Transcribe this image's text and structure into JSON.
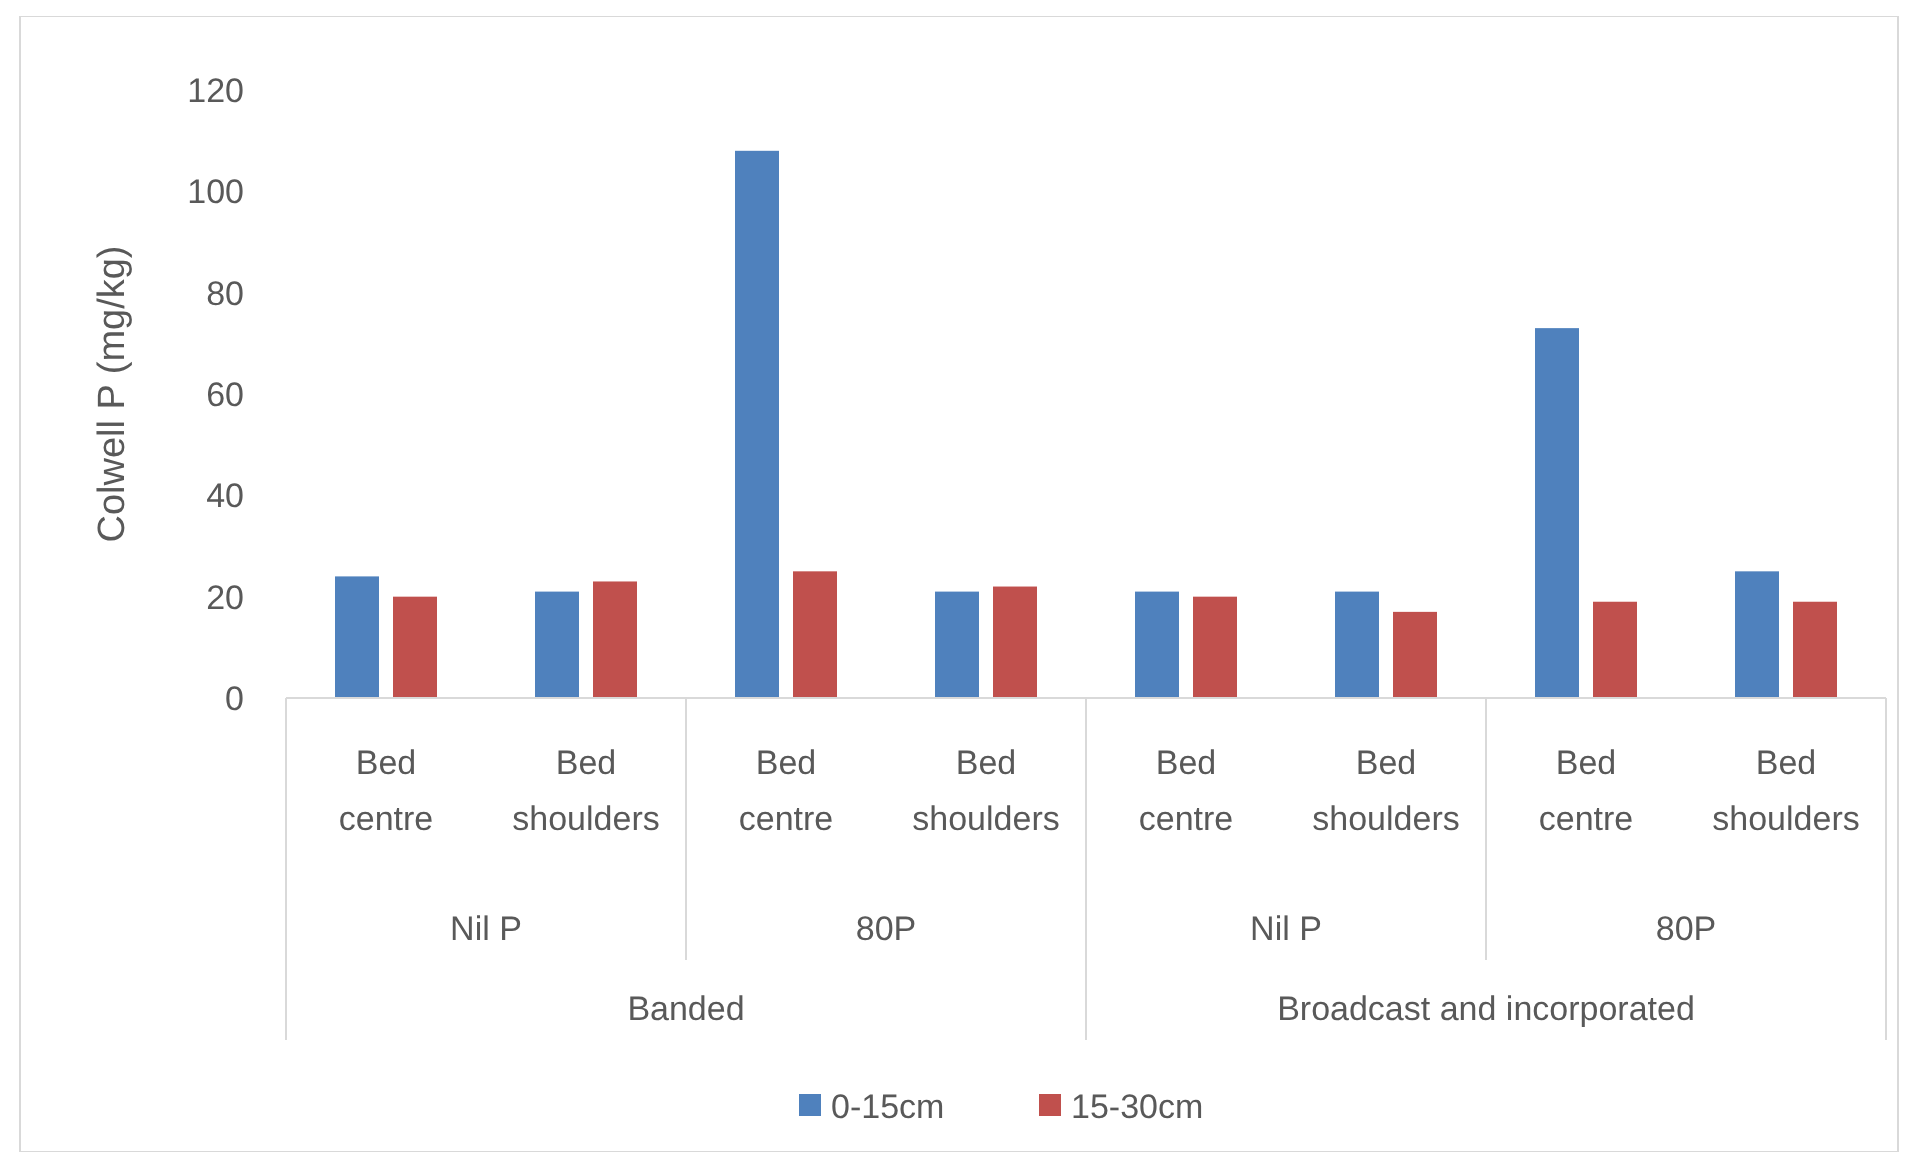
{
  "chart_data": {
    "type": "bar",
    "ylabel": "Colwell P (mg/kg)",
    "categories": [
      "Bed centre",
      "Bed shoulders",
      "Bed centre",
      "Bed shoulders",
      "Bed centre",
      "Bed shoulders",
      "Bed centre",
      "Bed shoulders"
    ],
    "series": [
      {
        "name": "0-15cm",
        "color": "#4f81bd",
        "values": [
          24,
          21,
          108,
          21,
          21,
          21,
          73,
          25
        ]
      },
      {
        "name": "15-30cm",
        "color": "#c0504d",
        "values": [
          20,
          23,
          25,
          22,
          20,
          17,
          19,
          19
        ]
      }
    ],
    "annotations": [
      "Nil P",
      "80P",
      "Nil P",
      "80P",
      "Banded",
      "Broadcast and incorporated"
    ],
    "ylim": [
      0,
      120
    ],
    "yticks": [
      0,
      20,
      40,
      60,
      80,
      100,
      120
    ],
    "grid": false,
    "legend": "bottom"
  }
}
